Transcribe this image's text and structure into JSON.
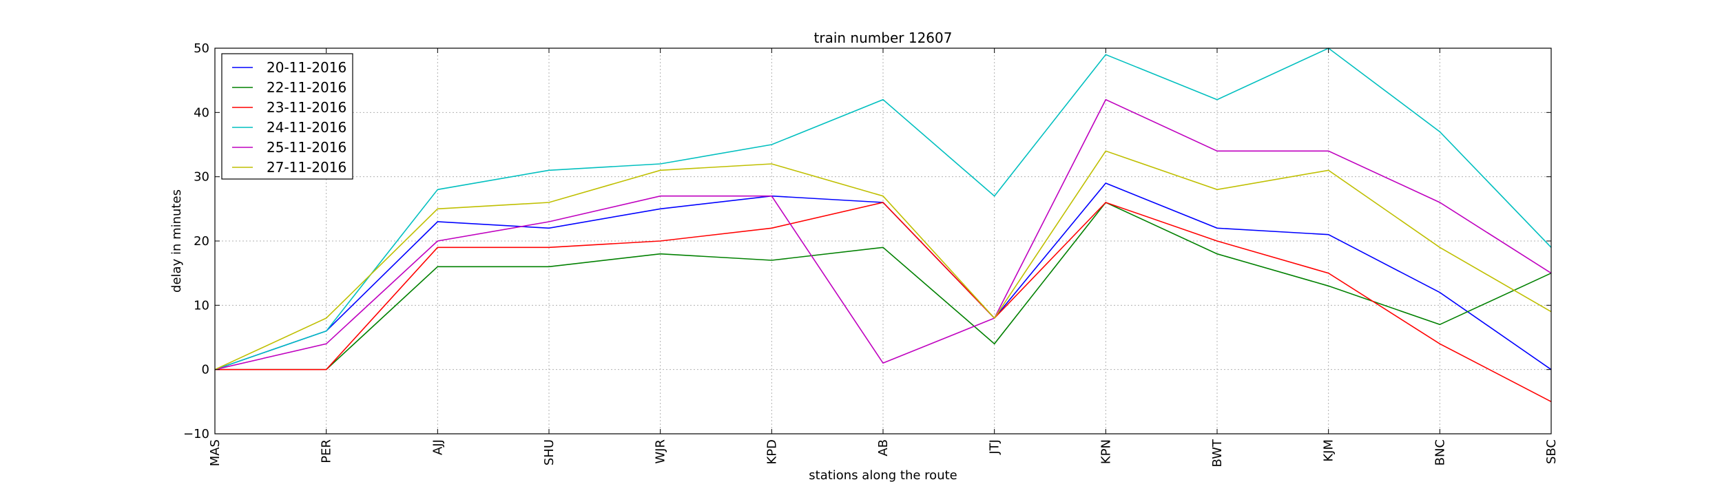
{
  "chart_data": {
    "type": "line",
    "title": "train number 12607",
    "xlabel": "stations along the route",
    "ylabel": "delay in minutes",
    "ylim": [
      -10,
      50
    ],
    "yticks": [
      -10,
      0,
      10,
      20,
      30,
      40,
      50
    ],
    "grid": true,
    "legend_position": "top-left",
    "categories": [
      "MAS",
      "PER",
      "AJJ",
      "SHU",
      "WJR",
      "KPD",
      "AB",
      "JTJ",
      "KPN",
      "BWT",
      "KJM",
      "BNC",
      "SBC"
    ],
    "series": [
      {
        "name": "20-11-2016",
        "color": "#0000ff",
        "values": [
          0,
          6,
          23,
          22,
          25,
          27,
          26,
          8,
          29,
          22,
          21,
          12,
          0
        ]
      },
      {
        "name": "22-11-2016",
        "color": "#008000",
        "values": [
          0,
          0,
          16,
          16,
          18,
          17,
          19,
          4,
          26,
          18,
          13,
          7,
          15
        ]
      },
      {
        "name": "23-11-2016",
        "color": "#ff0000",
        "values": [
          0,
          0,
          19,
          19,
          20,
          22,
          26,
          8,
          26,
          20,
          15,
          4,
          -5
        ]
      },
      {
        "name": "24-11-2016",
        "color": "#00bfbf",
        "values": [
          0,
          6,
          28,
          31,
          32,
          35,
          42,
          27,
          49,
          42,
          50,
          37,
          19
        ]
      },
      {
        "name": "25-11-2016",
        "color": "#bf00bf",
        "values": [
          0,
          4,
          20,
          23,
          27,
          27,
          1,
          8,
          42,
          34,
          34,
          26,
          15
        ]
      },
      {
        "name": "27-11-2016",
        "color": "#bfbf00",
        "values": [
          0,
          8,
          25,
          26,
          31,
          32,
          27,
          8,
          34,
          28,
          31,
          19,
          9
        ]
      }
    ]
  }
}
